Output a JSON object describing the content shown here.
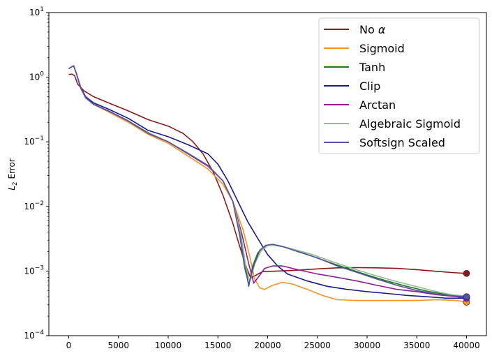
{
  "chart_data": {
    "type": "line",
    "title": "",
    "xlabel": "",
    "ylabel_main": "L",
    "ylabel_sub": "2",
    "ylabel_rest": " Error",
    "yscale": "log",
    "xlim": [
      -2000,
      42000
    ],
    "ylim": [
      0.0001,
      10
    ],
    "x_ticks": [
      0,
      5000,
      10000,
      15000,
      20000,
      25000,
      30000,
      35000,
      40000
    ],
    "x_tick_labels": [
      "0",
      "5000",
      "10000",
      "15000",
      "20000",
      "25000",
      "30000",
      "35000",
      "40000"
    ],
    "y_ticks": [
      0.0001,
      0.001,
      0.01,
      0.1,
      1,
      10
    ],
    "y_tick_bases": [
      "10",
      "10",
      "10",
      "10",
      "10",
      "10"
    ],
    "y_tick_exps": [
      "−4",
      "−3",
      "−2",
      "−1",
      "0",
      "1"
    ],
    "legend_loc": "upper right",
    "series": [
      {
        "name": "No α",
        "label_text": "No ",
        "label_symbol": "α",
        "color": "#8b1a1a",
        "marker": "end",
        "x": [
          0,
          300,
          600,
          900,
          1500,
          2500,
          4000,
          6000,
          8000,
          10000,
          11500,
          12500,
          13500,
          14500,
          15500,
          16500,
          17000,
          17500,
          17900,
          18300,
          18800,
          19500,
          21000,
          23000,
          25000,
          27000,
          29000,
          31000,
          33000,
          35000,
          37000,
          38500,
          40000
        ],
        "y": [
          1.1,
          1.12,
          1.05,
          0.78,
          0.62,
          0.5,
          0.4,
          0.3,
          0.22,
          0.175,
          0.135,
          0.1,
          0.065,
          0.035,
          0.015,
          0.0055,
          0.003,
          0.0017,
          0.0011,
          0.00078,
          0.00086,
          0.00098,
          0.001,
          0.00103,
          0.00108,
          0.00112,
          0.00113,
          0.00112,
          0.0011,
          0.00105,
          0.00099,
          0.00095,
          0.00092
        ]
      },
      {
        "name": "Sigmoid",
        "label_text": "Sigmoid",
        "label_symbol": "",
        "color": "#f7941d",
        "marker": "end",
        "x": [
          0,
          300,
          500,
          800,
          1200,
          1700,
          2500,
          4000,
          6000,
          8000,
          10000,
          12000,
          14000,
          15500,
          16500,
          17500,
          18200,
          18700,
          19200,
          19700,
          20500,
          21500,
          22500,
          24000,
          25500,
          27000,
          29000,
          31000,
          33000,
          35000,
          37000,
          39000,
          40000
        ],
        "y": [
          1.35,
          1.45,
          1.5,
          1.1,
          0.68,
          0.48,
          0.38,
          0.29,
          0.2,
          0.13,
          0.095,
          0.06,
          0.038,
          0.022,
          0.012,
          0.0045,
          0.0017,
          0.00075,
          0.00055,
          0.00052,
          0.0006,
          0.00067,
          0.00063,
          0.00052,
          0.00042,
          0.00036,
          0.00035,
          0.00035,
          0.00035,
          0.00035,
          0.00036,
          0.00035,
          0.00033
        ]
      },
      {
        "name": "Tanh",
        "label_text": "Tanh",
        "label_symbol": "",
        "color": "#1e7a1e",
        "marker": "end",
        "x": [
          0,
          300,
          500,
          800,
          1200,
          1700,
          2500,
          4000,
          6000,
          8000,
          10000,
          12000,
          14000,
          15500,
          16500,
          17300,
          17800,
          18100,
          18500,
          19000,
          19500,
          20000,
          20800,
          22000,
          24000,
          26000,
          28000,
          30000,
          32000,
          34000,
          36000,
          38000,
          40000
        ],
        "y": [
          1.35,
          1.45,
          1.5,
          1.1,
          0.68,
          0.48,
          0.38,
          0.3,
          0.21,
          0.135,
          0.1,
          0.065,
          0.042,
          0.025,
          0.012,
          0.0035,
          0.0011,
          0.00058,
          0.0012,
          0.0019,
          0.0023,
          0.0025,
          0.0025,
          0.0023,
          0.0018,
          0.0014,
          0.0011,
          0.00087,
          0.0007,
          0.00058,
          0.00049,
          0.00043,
          0.0004
        ]
      },
      {
        "name": "Clip",
        "label_text": "Clip",
        "label_symbol": "",
        "color": "#1a1a8b",
        "marker": "end",
        "x": [
          0,
          300,
          500,
          800,
          1200,
          1700,
          2500,
          4000,
          6000,
          8000,
          10000,
          12000,
          14000,
          15000,
          16000,
          17000,
          18000,
          19000,
          20000,
          21000,
          22000,
          24000,
          26000,
          28000,
          30000,
          32000,
          34000,
          36000,
          38000,
          40000
        ],
        "y": [
          1.35,
          1.45,
          1.5,
          1.1,
          0.7,
          0.5,
          0.4,
          0.32,
          0.23,
          0.15,
          0.12,
          0.09,
          0.065,
          0.045,
          0.025,
          0.012,
          0.0058,
          0.0032,
          0.0018,
          0.0012,
          0.0009,
          0.0007,
          0.00058,
          0.00052,
          0.00048,
          0.00045,
          0.00042,
          0.0004,
          0.00038,
          0.00038
        ]
      },
      {
        "name": "Arctan",
        "label_text": "Arctan",
        "label_symbol": "",
        "color": "#8e1a9c",
        "marker": "end",
        "x": [
          0,
          300,
          500,
          800,
          1200,
          1700,
          2500,
          4000,
          6000,
          8000,
          10000,
          12000,
          14000,
          15500,
          16500,
          17400,
          18100,
          18600,
          19100,
          19700,
          20500,
          21500,
          23000,
          25000,
          27000,
          29000,
          31000,
          33000,
          35000,
          37000,
          39000,
          40000
        ],
        "y": [
          1.35,
          1.45,
          1.5,
          1.1,
          0.68,
          0.48,
          0.38,
          0.3,
          0.21,
          0.135,
          0.1,
          0.065,
          0.042,
          0.025,
          0.012,
          0.0038,
          0.0013,
          0.00065,
          0.00082,
          0.0011,
          0.0012,
          0.0012,
          0.00105,
          0.0009,
          0.0008,
          0.0007,
          0.0006,
          0.00052,
          0.00048,
          0.00043,
          0.0004,
          0.00038
        ]
      },
      {
        "name": "Algebraic Sigmoid",
        "label_text": "Algebraic Sigmoid",
        "label_symbol": "",
        "color": "#8fbf8f",
        "marker": "none",
        "x": [
          0,
          300,
          500,
          800,
          1200,
          1700,
          2500,
          4000,
          6000,
          8000,
          10000,
          12000,
          14000,
          15500,
          16500,
          17300,
          17800,
          18200,
          18700,
          19300,
          20000,
          21000,
          22500,
          24500,
          26500,
          28500,
          30500,
          32500,
          34500,
          36500,
          38500,
          40000
        ],
        "y": [
          1.35,
          1.45,
          1.5,
          1.1,
          0.68,
          0.48,
          0.38,
          0.3,
          0.21,
          0.14,
          0.1,
          0.067,
          0.043,
          0.025,
          0.012,
          0.0038,
          0.0012,
          0.00068,
          0.0013,
          0.002,
          0.0025,
          0.0025,
          0.0022,
          0.0018,
          0.0014,
          0.0011,
          0.00088,
          0.00072,
          0.0006,
          0.0005,
          0.00043,
          0.00041
        ]
      },
      {
        "name": "Softsign Scaled",
        "label_text": "Softsign Scaled",
        "label_symbol": "",
        "color": "#5a4fa8",
        "marker": "end",
        "x": [
          0,
          300,
          500,
          800,
          1200,
          1700,
          2500,
          4000,
          6000,
          8000,
          10000,
          12000,
          14000,
          15500,
          16500,
          17200,
          17700,
          18100,
          18600,
          19200,
          19800,
          20500,
          21500,
          23000,
          25000,
          27000,
          29000,
          31000,
          33000,
          35000,
          37000,
          39000,
          40000
        ],
        "y": [
          1.35,
          1.45,
          1.5,
          1.1,
          0.68,
          0.48,
          0.38,
          0.3,
          0.21,
          0.135,
          0.1,
          0.066,
          0.043,
          0.025,
          0.012,
          0.0035,
          0.0011,
          0.00062,
          0.0012,
          0.0021,
          0.0025,
          0.0026,
          0.0024,
          0.002,
          0.0016,
          0.0012,
          0.00095,
          0.00075,
          0.0006,
          0.0005,
          0.00044,
          0.00041,
          0.0004
        ]
      }
    ]
  }
}
